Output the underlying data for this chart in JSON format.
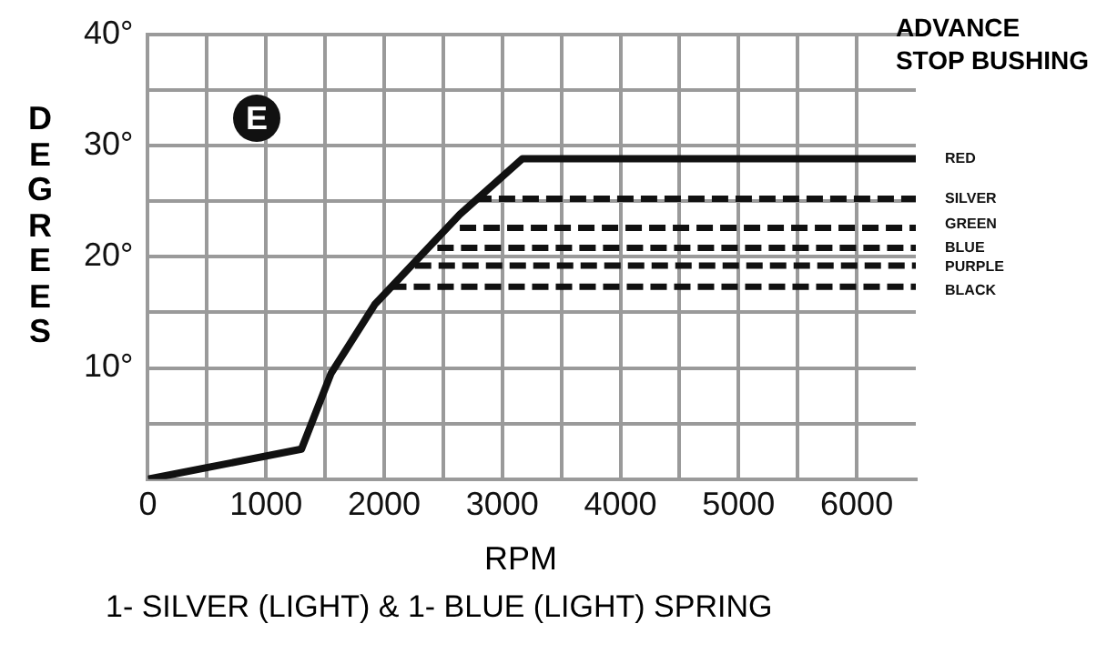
{
  "chart_data": {
    "type": "line",
    "title": "ADVANCE\nSTOP BUSHING",
    "xlabel": "RPM",
    "ylabel": "DEGREES",
    "annotations": [
      "E",
      "1- SILVER (LIGHT) & 1- BLUE (LIGHT) SPRING"
    ],
    "xlim": [
      0,
      6500
    ],
    "ylim": [
      0,
      40
    ],
    "xticks": [
      0,
      {
        "value": 500,
        "label": null
      },
      1000,
      {
        "value": 1500,
        "label": null
      },
      2000,
      {
        "value": 2500,
        "label": null
      },
      3000,
      {
        "value": 3500,
        "label": null
      },
      4000,
      {
        "value": 4500,
        "label": null
      },
      5000,
      {
        "value": 5500,
        "label": null
      },
      6000
    ],
    "yticks": [
      {
        "value": 0,
        "label": null
      },
      {
        "value": 5,
        "label": null
      },
      {
        "value": 10,
        "label": "10°"
      },
      {
        "value": 15,
        "label": null
      },
      {
        "value": 20,
        "label": "20°"
      },
      {
        "value": 25,
        "label": null
      },
      {
        "value": 30,
        "label": "30°"
      },
      {
        "value": 35,
        "label": null
      },
      {
        "value": 40,
        "label": "40°"
      }
    ],
    "grid": true,
    "legend": false,
    "marker": "none",
    "series": [
      {
        "name": "RED",
        "color": "#111111",
        "line_style": "solid",
        "x": [
          0,
          1300,
          1550,
          1920,
          2640,
          3170,
          6500
        ],
        "values": [
          0,
          2.7,
          9.5,
          15.7,
          23.8,
          28.8,
          28.8
        ]
      },
      {
        "name": "SILVER",
        "color": "#111111",
        "line_style": "dashed",
        "x": [
          2770,
          6500
        ],
        "values": [
          25.2,
          25.2
        ]
      },
      {
        "name": "GREEN",
        "color": "#111111",
        "line_style": "dashed",
        "x": [
          2640,
          6500
        ],
        "values": [
          22.6,
          22.6
        ]
      },
      {
        "name": "BLUE",
        "color": "#111111",
        "line_style": "dashed",
        "x": [
          2450,
          6500
        ],
        "values": [
          20.8,
          20.8
        ]
      },
      {
        "name": "PURPLE",
        "color": "#111111",
        "line_style": "dashed",
        "x": [
          2260,
          6500
        ],
        "values": [
          19.2,
          19.2
        ]
      },
      {
        "name": "BLACK",
        "color": "#111111",
        "line_style": "dashed",
        "x": [
          2050,
          6500
        ],
        "values": [
          17.3,
          17.3
        ]
      }
    ]
  }
}
